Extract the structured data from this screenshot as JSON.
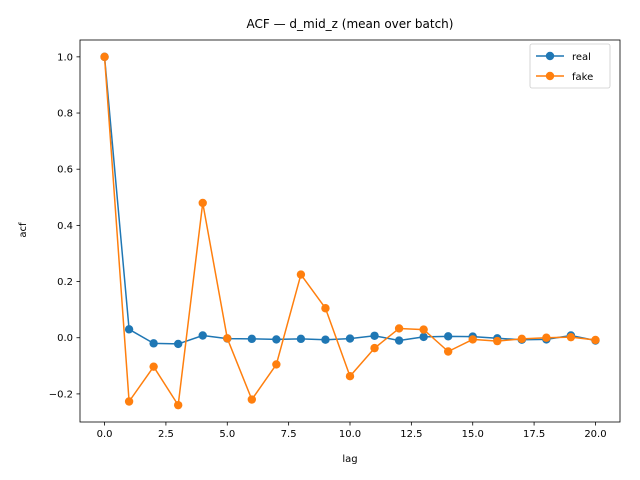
{
  "chart_data": {
    "type": "line",
    "title": "ACF — d_mid_z (mean over batch)",
    "xlabel": "lag",
    "ylabel": "acf",
    "xlim": [
      -1.0,
      21.0
    ],
    "ylim": [
      -0.3,
      1.06
    ],
    "xticks": [
      0.0,
      2.5,
      5.0,
      7.5,
      10.0,
      12.5,
      15.0,
      17.5,
      20.0
    ],
    "xtick_labels": [
      "0.0",
      "2.5",
      "5.0",
      "7.5",
      "10.0",
      "12.5",
      "15.0",
      "17.5",
      "20.0"
    ],
    "yticks": [
      -0.2,
      0.0,
      0.2,
      0.4,
      0.6,
      0.8,
      1.0
    ],
    "ytick_labels": [
      "−0.2",
      "0.0",
      "0.2",
      "0.4",
      "0.6",
      "0.8",
      "1.0"
    ],
    "x": [
      0,
      1,
      2,
      3,
      4,
      5,
      6,
      7,
      8,
      9,
      10,
      11,
      12,
      13,
      14,
      15,
      16,
      17,
      18,
      19,
      20
    ],
    "series": [
      {
        "name": "real",
        "color": "#1f77b4",
        "values": [
          1.0,
          0.03,
          -0.02,
          -0.022,
          0.008,
          -0.003,
          -0.004,
          -0.006,
          -0.004,
          -0.007,
          -0.003,
          0.007,
          -0.01,
          0.003,
          0.005,
          0.004,
          -0.002,
          -0.007,
          -0.006,
          0.008,
          -0.01
        ]
      },
      {
        "name": "fake",
        "color": "#ff7f0e",
        "values": [
          1.0,
          -0.227,
          -0.103,
          -0.24,
          0.48,
          -0.002,
          -0.22,
          -0.095,
          0.225,
          0.105,
          -0.137,
          -0.037,
          0.033,
          0.029,
          -0.049,
          -0.006,
          -0.012,
          -0.004,
          0.0,
          0.002,
          -0.008
        ]
      }
    ],
    "grid": false,
    "legend": "top-right"
  }
}
